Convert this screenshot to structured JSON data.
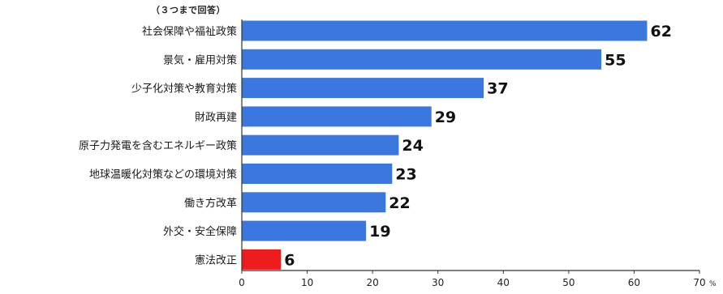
{
  "chart_data": {
    "type": "bar",
    "orientation": "horizontal",
    "note": "（３つまで回答）",
    "categories": [
      "社会保障や福祉政策",
      "景気・雇用対策",
      "少子化対策や教育対策",
      "財政再建",
      "原子力発電を含むエネルギー政策",
      "地球温暖化対策などの環境対策",
      "働き方改革",
      "外交・安全保障",
      "憲法改正"
    ],
    "values": [
      62,
      55,
      37,
      29,
      24,
      23,
      22,
      19,
      6
    ],
    "value_labels": [
      "62",
      "55",
      "37",
      "29",
      "24",
      "23",
      "22",
      "19",
      "6"
    ],
    "colors": [
      "#3a78e0",
      "#3a78e0",
      "#3a78e0",
      "#3a78e0",
      "#3a78e0",
      "#3a78e0",
      "#3a78e0",
      "#3a78e0",
      "#ee1c1c"
    ],
    "xlim": [
      0,
      70
    ],
    "xticks": [
      "0",
      "10",
      "20",
      "30",
      "40",
      "50",
      "60",
      "70"
    ],
    "x_unit": "%",
    "grid": false,
    "legend": "none"
  }
}
